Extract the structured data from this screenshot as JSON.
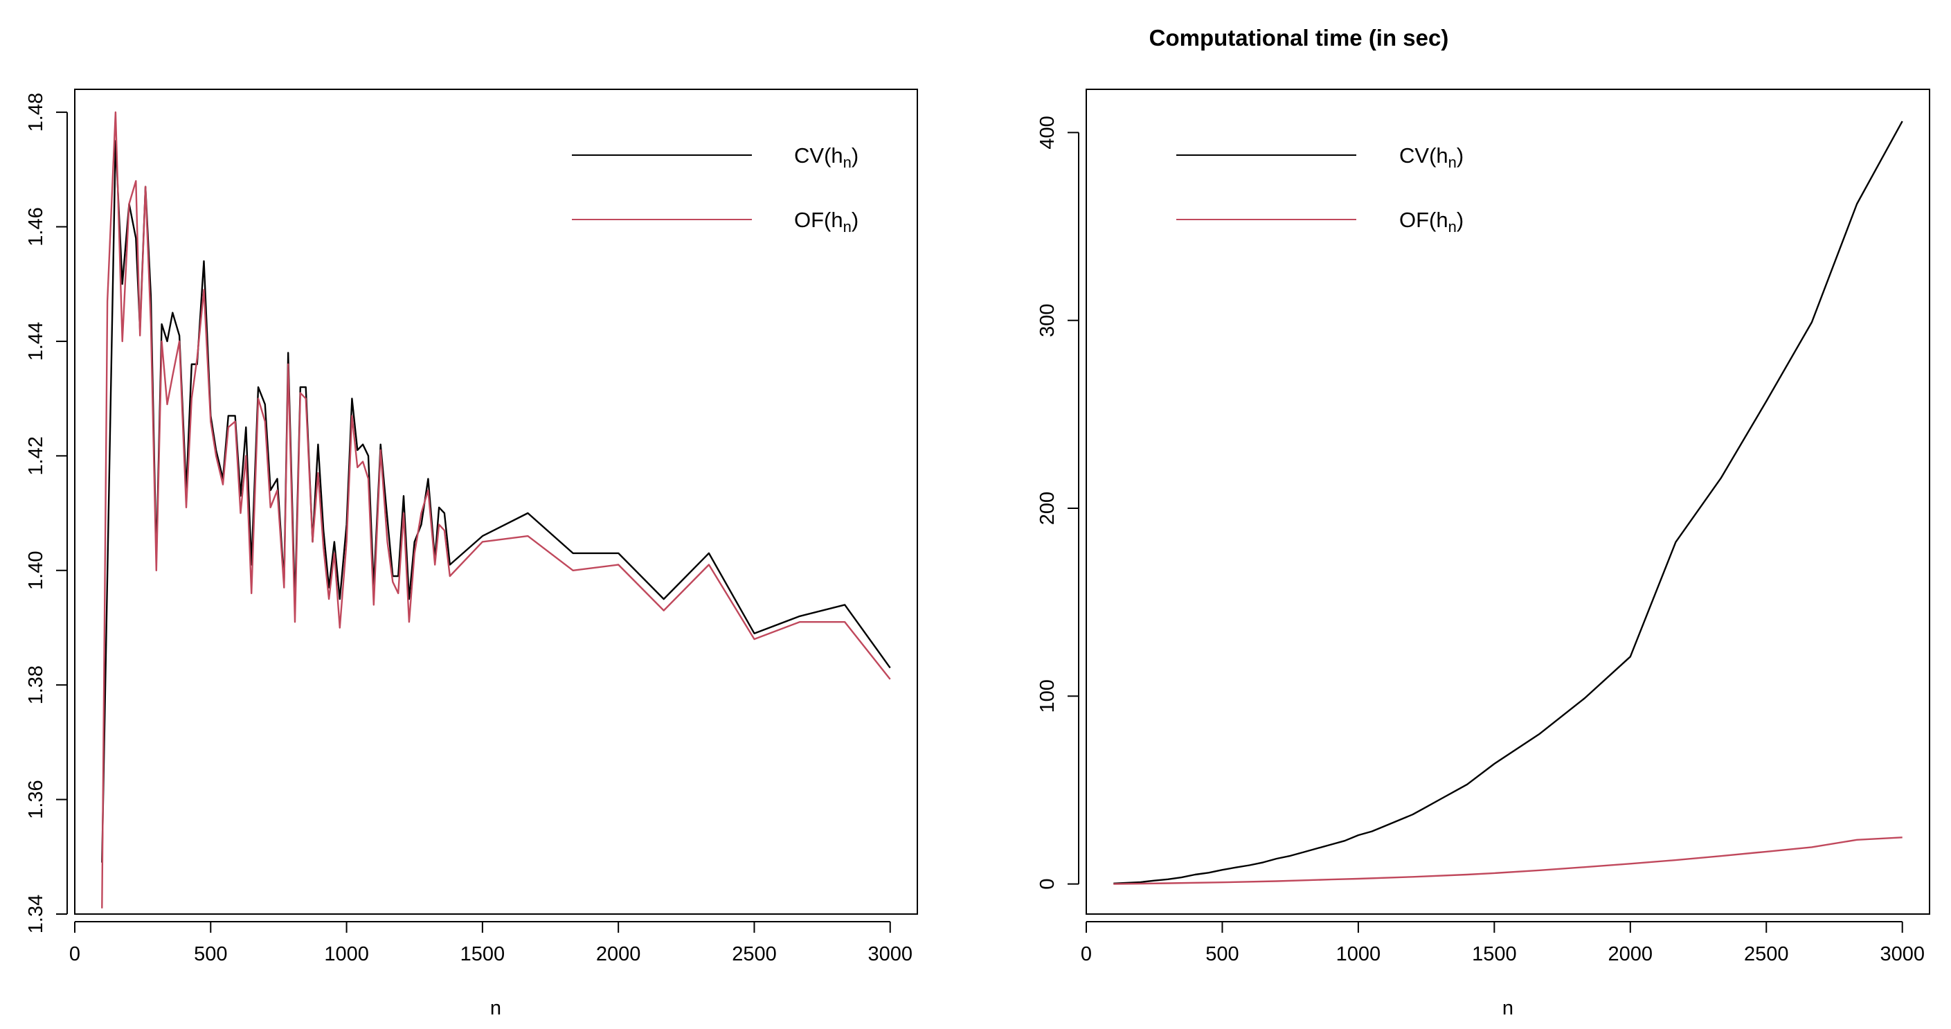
{
  "chart_data": [
    {
      "type": "line",
      "title": "",
      "xlabel": "n",
      "ylabel": "",
      "xlim": [
        0,
        3100
      ],
      "ylim": [
        1.34,
        1.484
      ],
      "xticks": [
        "0",
        "500",
        "1000",
        "1500",
        "2000",
        "2500",
        "3000"
      ],
      "yticks": [
        "1.34",
        "1.36",
        "1.38",
        "1.40",
        "1.42",
        "1.44",
        "1.46",
        "1.48"
      ],
      "legend": {
        "position": "top-right",
        "entries": [
          {
            "label": "CV(h",
            "sub": "n",
            "close": ")"
          },
          {
            "label": "OF(h",
            "sub": "n",
            "close": ")"
          }
        ]
      },
      "series": [
        {
          "color": "#000000",
          "points": [
            [
              100,
              1.349
            ],
            [
              150,
              1.475
            ],
            [
              175,
              1.45
            ],
            [
              200,
              1.464
            ],
            [
              225,
              1.458
            ],
            [
              240,
              1.442
            ],
            [
              260,
              1.467
            ],
            [
              280,
              1.448
            ],
            [
              300,
              1.402
            ],
            [
              320,
              1.443
            ],
            [
              340,
              1.44
            ],
            [
              360,
              1.445
            ],
            [
              385,
              1.441
            ],
            [
              410,
              1.414
            ],
            [
              430,
              1.436
            ],
            [
              450,
              1.436
            ],
            [
              475,
              1.454
            ],
            [
              500,
              1.427
            ],
            [
              520,
              1.421
            ],
            [
              545,
              1.416
            ],
            [
              565,
              1.427
            ],
            [
              590,
              1.427
            ],
            [
              610,
              1.413
            ],
            [
              630,
              1.425
            ],
            [
              650,
              1.401
            ],
            [
              675,
              1.432
            ],
            [
              700,
              1.429
            ],
            [
              720,
              1.414
            ],
            [
              745,
              1.416
            ],
            [
              770,
              1.398
            ],
            [
              785,
              1.438
            ],
            [
              810,
              1.394
            ],
            [
              830,
              1.432
            ],
            [
              850,
              1.432
            ],
            [
              875,
              1.405
            ],
            [
              895,
              1.422
            ],
            [
              915,
              1.407
            ],
            [
              935,
              1.397
            ],
            [
              955,
              1.405
            ],
            [
              975,
              1.395
            ],
            [
              1000,
              1.408
            ],
            [
              1020,
              1.43
            ],
            [
              1040,
              1.421
            ],
            [
              1060,
              1.422
            ],
            [
              1080,
              1.42
            ],
            [
              1100,
              1.397
            ],
            [
              1125,
              1.422
            ],
            [
              1150,
              1.409
            ],
            [
              1170,
              1.399
            ],
            [
              1190,
              1.399
            ],
            [
              1210,
              1.413
            ],
            [
              1230,
              1.395
            ],
            [
              1250,
              1.405
            ],
            [
              1275,
              1.408
            ],
            [
              1300,
              1.416
            ],
            [
              1325,
              1.402
            ],
            [
              1340,
              1.411
            ],
            [
              1360,
              1.41
            ],
            [
              1380,
              1.401
            ],
            [
              1500,
              1.406
            ],
            [
              1667,
              1.41
            ],
            [
              1833,
              1.403
            ],
            [
              2000,
              1.403
            ],
            [
              2167,
              1.395
            ],
            [
              2333,
              1.403
            ],
            [
              2500,
              1.389
            ],
            [
              2667,
              1.392
            ],
            [
              2833,
              1.394
            ],
            [
              3000,
              1.383
            ]
          ]
        },
        {
          "color": "#c0485c",
          "points": [
            [
              100,
              1.341
            ],
            [
              120,
              1.447
            ],
            [
              150,
              1.48
            ],
            [
              175,
              1.44
            ],
            [
              200,
              1.464
            ],
            [
              225,
              1.468
            ],
            [
              240,
              1.441
            ],
            [
              260,
              1.467
            ],
            [
              280,
              1.443
            ],
            [
              300,
              1.4
            ],
            [
              320,
              1.44
            ],
            [
              340,
              1.429
            ],
            [
              360,
              1.434
            ],
            [
              385,
              1.44
            ],
            [
              410,
              1.411
            ],
            [
              430,
              1.43
            ],
            [
              450,
              1.437
            ],
            [
              475,
              1.449
            ],
            [
              500,
              1.426
            ],
            [
              520,
              1.42
            ],
            [
              545,
              1.415
            ],
            [
              565,
              1.425
            ],
            [
              590,
              1.426
            ],
            [
              610,
              1.41
            ],
            [
              630,
              1.42
            ],
            [
              650,
              1.396
            ],
            [
              675,
              1.43
            ],
            [
              700,
              1.426
            ],
            [
              720,
              1.411
            ],
            [
              745,
              1.414
            ],
            [
              770,
              1.397
            ],
            [
              785,
              1.436
            ],
            [
              810,
              1.391
            ],
            [
              830,
              1.431
            ],
            [
              850,
              1.43
            ],
            [
              875,
              1.405
            ],
            [
              895,
              1.417
            ],
            [
              915,
              1.404
            ],
            [
              935,
              1.395
            ],
            [
              955,
              1.403
            ],
            [
              975,
              1.39
            ],
            [
              1000,
              1.405
            ],
            [
              1020,
              1.427
            ],
            [
              1040,
              1.418
            ],
            [
              1060,
              1.419
            ],
            [
              1080,
              1.416
            ],
            [
              1100,
              1.394
            ],
            [
              1125,
              1.421
            ],
            [
              1150,
              1.405
            ],
            [
              1170,
              1.398
            ],
            [
              1190,
              1.396
            ],
            [
              1210,
              1.41
            ],
            [
              1230,
              1.391
            ],
            [
              1250,
              1.403
            ],
            [
              1275,
              1.41
            ],
            [
              1300,
              1.414
            ],
            [
              1325,
              1.401
            ],
            [
              1340,
              1.408
            ],
            [
              1360,
              1.407
            ],
            [
              1380,
              1.399
            ],
            [
              1500,
              1.405
            ],
            [
              1667,
              1.406
            ],
            [
              1833,
              1.4
            ],
            [
              2000,
              1.401
            ],
            [
              2167,
              1.393
            ],
            [
              2333,
              1.401
            ],
            [
              2500,
              1.388
            ],
            [
              2667,
              1.391
            ],
            [
              2833,
              1.391
            ],
            [
              3000,
              1.381
            ]
          ]
        }
      ]
    },
    {
      "type": "line",
      "title": "Computational time (in sec)",
      "xlabel": "n",
      "ylabel": "",
      "xlim": [
        0,
        3100
      ],
      "ylim": [
        -16,
        423
      ],
      "xticks": [
        "0",
        "500",
        "1000",
        "1500",
        "2000",
        "2500",
        "3000"
      ],
      "yticks": [
        "0",
        "100",
        "200",
        "300",
        "400"
      ],
      "legend": {
        "position": "top-left",
        "entries": [
          {
            "label": "CV(h",
            "sub": "n",
            "close": ")"
          },
          {
            "label": "OF(h",
            "sub": "n",
            "close": ")"
          }
        ]
      },
      "series": [
        {
          "color": "#000000",
          "points": [
            [
              100,
              0.3
            ],
            [
              200,
              1
            ],
            [
              250,
              1.8
            ],
            [
              300,
              2.5
            ],
            [
              350,
              3.5
            ],
            [
              400,
              5
            ],
            [
              450,
              6
            ],
            [
              500,
              7.5
            ],
            [
              550,
              8.8
            ],
            [
              600,
              10
            ],
            [
              650,
              11.5
            ],
            [
              700,
              13.5
            ],
            [
              750,
              15
            ],
            [
              800,
              17
            ],
            [
              850,
              19
            ],
            [
              900,
              21
            ],
            [
              950,
              23
            ],
            [
              1000,
              26
            ],
            [
              1050,
              28
            ],
            [
              1100,
              31
            ],
            [
              1150,
              34
            ],
            [
              1200,
              37
            ],
            [
              1250,
              41
            ],
            [
              1300,
              45
            ],
            [
              1350,
              49
            ],
            [
              1400,
              53
            ],
            [
              1500,
              64
            ],
            [
              1667,
              80
            ],
            [
              1833,
              99
            ],
            [
              2000,
              121
            ],
            [
              2167,
              182
            ],
            [
              2333,
              216
            ],
            [
              2500,
              257
            ],
            [
              2667,
              299
            ],
            [
              2833,
              362
            ],
            [
              3000,
              406
            ]
          ]
        },
        {
          "color": "#c0485c",
          "points": [
            [
              100,
              0
            ],
            [
              300,
              0.4
            ],
            [
              500,
              0.9
            ],
            [
              700,
              1.5
            ],
            [
              900,
              2.4
            ],
            [
              1000,
              2.8
            ],
            [
              1200,
              3.8
            ],
            [
              1400,
              5
            ],
            [
              1500,
              5.8
            ],
            [
              1667,
              7.3
            ],
            [
              1833,
              9
            ],
            [
              2000,
              10.8
            ],
            [
              2167,
              12.7
            ],
            [
              2333,
              14.9
            ],
            [
              2500,
              17.2
            ],
            [
              2667,
              19.6
            ],
            [
              2833,
              23.5
            ],
            [
              3000,
              24.8
            ]
          ]
        }
      ]
    }
  ]
}
